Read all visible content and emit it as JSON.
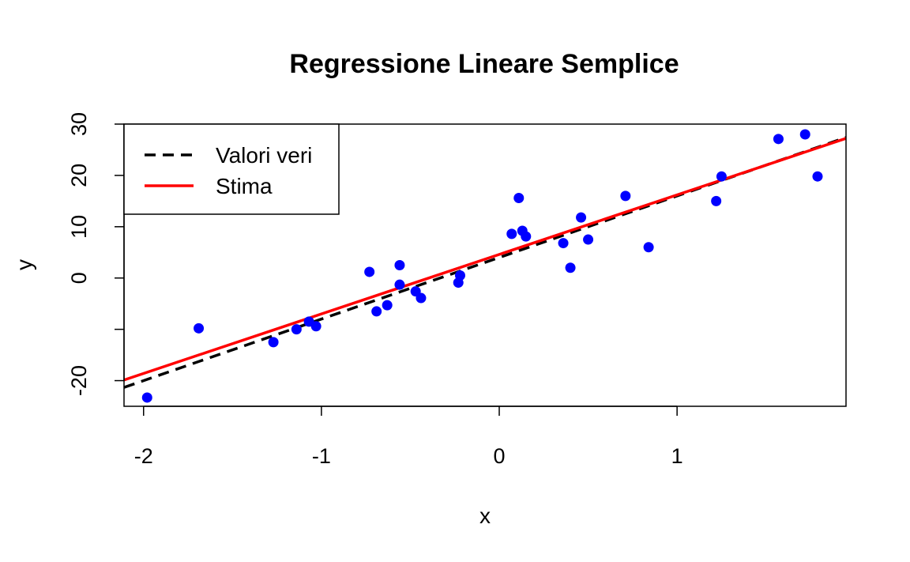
{
  "chart_data": {
    "type": "scatter",
    "title": "Regressione Lineare Semplice",
    "xlabel": "x",
    "ylabel": "y",
    "xlim": [
      -2.11,
      1.95
    ],
    "ylim": [
      -25,
      30
    ],
    "x_ticks": [
      -2,
      -1,
      0,
      1
    ],
    "x_tick_labels": [
      "-2",
      "-1",
      "0",
      "1"
    ],
    "y_ticks": [
      -20,
      -10,
      0,
      10,
      20,
      30
    ],
    "y_tick_labels": [
      "-20",
      "",
      "0",
      "10",
      "20",
      "30"
    ],
    "grid": false,
    "legend_position": "top-left",
    "points_color": "#0000ff",
    "points": [
      {
        "x": -1.98,
        "y": -23.3
      },
      {
        "x": -1.69,
        "y": -9.8
      },
      {
        "x": -1.27,
        "y": -12.5
      },
      {
        "x": -1.14,
        "y": -10.0
      },
      {
        "x": -1.07,
        "y": -8.5
      },
      {
        "x": -1.03,
        "y": -9.4
      },
      {
        "x": -0.73,
        "y": 1.2
      },
      {
        "x": -0.69,
        "y": -6.5
      },
      {
        "x": -0.63,
        "y": -5.3
      },
      {
        "x": -0.56,
        "y": 2.5
      },
      {
        "x": -0.56,
        "y": -1.3
      },
      {
        "x": -0.47,
        "y": -2.6
      },
      {
        "x": -0.44,
        "y": -3.9
      },
      {
        "x": -0.23,
        "y": -0.9
      },
      {
        "x": -0.22,
        "y": 0.5
      },
      {
        "x": 0.07,
        "y": 8.6
      },
      {
        "x": 0.11,
        "y": 15.6
      },
      {
        "x": 0.13,
        "y": 9.2
      },
      {
        "x": 0.15,
        "y": 8.1
      },
      {
        "x": 0.36,
        "y": 6.8
      },
      {
        "x": 0.4,
        "y": 2.0
      },
      {
        "x": 0.46,
        "y": 11.8
      },
      {
        "x": 0.5,
        "y": 7.5
      },
      {
        "x": 0.71,
        "y": 16.0
      },
      {
        "x": 0.84,
        "y": 6.0
      },
      {
        "x": 1.22,
        "y": 15.0
      },
      {
        "x": 1.25,
        "y": 19.8
      },
      {
        "x": 1.57,
        "y": 27.1
      },
      {
        "x": 1.72,
        "y": 28.0
      },
      {
        "x": 1.79,
        "y": 19.8
      }
    ],
    "series": [
      {
        "name": "Valori veri",
        "type": "line",
        "style": "dashed",
        "color": "#000000",
        "intercept": 4.0,
        "slope": 12.0
      },
      {
        "name": "Stima",
        "type": "line",
        "style": "solid",
        "color": "#ff0000",
        "intercept": 4.6,
        "slope": 11.6
      }
    ]
  }
}
